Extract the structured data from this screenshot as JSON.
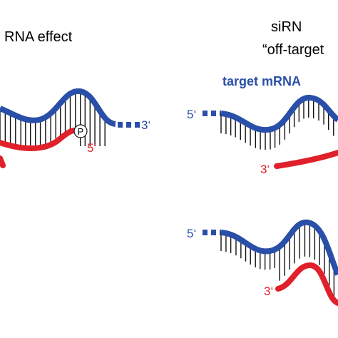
{
  "left_panel": {
    "title": "RNA effect",
    "target_end": "3‘",
    "sirna_end": "5‘",
    "phosphate": "P"
  },
  "right_panel": {
    "title_line_1": "siRN",
    "title_line_2": "“off-target",
    "target_label": "target mRNA",
    "top": {
      "target_end": "5‘",
      "sirna_end": "3‘"
    },
    "bottom": {
      "target_end": "5‘",
      "sirna_end": "3‘"
    }
  }
}
